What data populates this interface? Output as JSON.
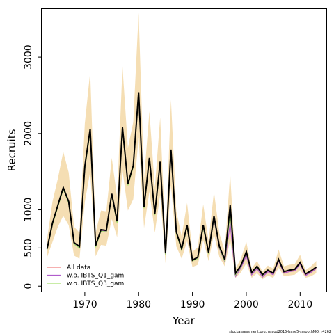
{
  "chart_data": {
    "type": "line",
    "title": "",
    "xlabel": "Year",
    "ylabel": "Recruits",
    "xlim": [
      1962,
      2015
    ],
    "ylim": [
      -80,
      3630
    ],
    "x_ticks": [
      1970,
      1980,
      1990,
      2000,
      2010
    ],
    "y_ticks": [
      0,
      500,
      1000,
      2000,
      3000
    ],
    "grid": false,
    "legend_position": "bottom-left",
    "x": [
      1963,
      1964,
      1965,
      1966,
      1967,
      1968,
      1969,
      1970,
      1971,
      1972,
      1973,
      1974,
      1975,
      1976,
      1977,
      1978,
      1979,
      1980,
      1981,
      1982,
      1983,
      1984,
      1985,
      1986,
      1987,
      1988,
      1989,
      1990,
      1991,
      1992,
      1993,
      1994,
      1995,
      1996,
      1997,
      1998,
      1999,
      2000,
      2001,
      2002,
      2003,
      2004,
      2005,
      2006,
      2007,
      2008,
      2009,
      2010,
      2011,
      2012,
      2013
    ],
    "series": [
      {
        "name": "All data",
        "color": "#f08080",
        "values": [
          490,
          820,
          1050,
          1280,
          1100,
          560,
          510,
          1560,
          2040,
          520,
          730,
          720,
          1200,
          840,
          2060,
          1330,
          1570,
          2520,
          1030,
          1670,
          940,
          1620,
          420,
          1770,
          700,
          480,
          790,
          330,
          370,
          790,
          430,
          900,
          510,
          340,
          1050,
          160,
          250,
          420,
          160,
          240,
          130,
          200,
          160,
          340,
          180,
          200,
          210,
          300,
          150,
          190,
          240
        ]
      },
      {
        "name": "w.o. IBTS_Q1_gam",
        "color": "#b05ccc",
        "values": [
          490,
          820,
          1050,
          1280,
          1100,
          560,
          510,
          1560,
          2040,
          520,
          730,
          720,
          1200,
          840,
          2060,
          1330,
          1570,
          2520,
          1030,
          1670,
          940,
          1620,
          420,
          1770,
          700,
          480,
          790,
          330,
          370,
          780,
          430,
          880,
          490,
          320,
          820,
          130,
          240,
          400,
          150,
          230,
          120,
          190,
          150,
          330,
          170,
          190,
          200,
          290,
          140,
          180,
          230
        ]
      },
      {
        "name": "w.o. IBTS_Q3_gam",
        "color": "#a8e070",
        "values": [
          480,
          810,
          1040,
          1270,
          1090,
          550,
          500,
          1540,
          2030,
          510,
          720,
          710,
          1190,
          830,
          2050,
          1320,
          1560,
          2510,
          1020,
          1660,
          930,
          1610,
          410,
          1760,
          690,
          470,
          780,
          330,
          360,
          770,
          420,
          890,
          500,
          330,
          950,
          150,
          260,
          440,
          170,
          250,
          140,
          210,
          170,
          350,
          190,
          210,
          220,
          310,
          160,
          200,
          250
        ]
      }
    ],
    "reference_line": {
      "color": "#000000",
      "values": [
        490,
        830,
        1060,
        1290,
        1110,
        570,
        520,
        1570,
        2060,
        530,
        740,
        730,
        1210,
        850,
        2080,
        1340,
        1580,
        2540,
        1040,
        1680,
        950,
        1630,
        430,
        1790,
        710,
        490,
        800,
        340,
        380,
        800,
        440,
        920,
        520,
        350,
        1060,
        170,
        270,
        450,
        180,
        260,
        150,
        210,
        170,
        350,
        190,
        210,
        220,
        310,
        160,
        200,
        250
      ]
    },
    "band": {
      "color": "#f5deb3",
      "lower": [
        380,
        580,
        780,
        920,
        800,
        400,
        360,
        1100,
        1500,
        390,
        540,
        530,
        880,
        640,
        1520,
        990,
        1140,
        1950,
        760,
        1240,
        700,
        1200,
        300,
        1320,
        520,
        360,
        590,
        250,
        280,
        600,
        330,
        680,
        380,
        260,
        600,
        110,
        180,
        300,
        110,
        170,
        90,
        140,
        110,
        240,
        130,
        140,
        150,
        210,
        110,
        130,
        170
      ],
      "upper": [
        620,
        1110,
        1410,
        1760,
        1490,
        780,
        700,
        2130,
        2810,
        700,
        990,
        980,
        1680,
        1160,
        2880,
        1810,
        2150,
        3580,
        1400,
        2290,
        1290,
        2210,
        590,
        2440,
        980,
        650,
        1090,
        450,
        510,
        1070,
        590,
        1240,
        690,
        460,
        1480,
        230,
        360,
        580,
        230,
        330,
        190,
        270,
        230,
        480,
        260,
        280,
        290,
        410,
        210,
        260,
        330
      ]
    },
    "footnote": "stockassessment.org, nscod2015-base5-smoothMO, r4262"
  }
}
